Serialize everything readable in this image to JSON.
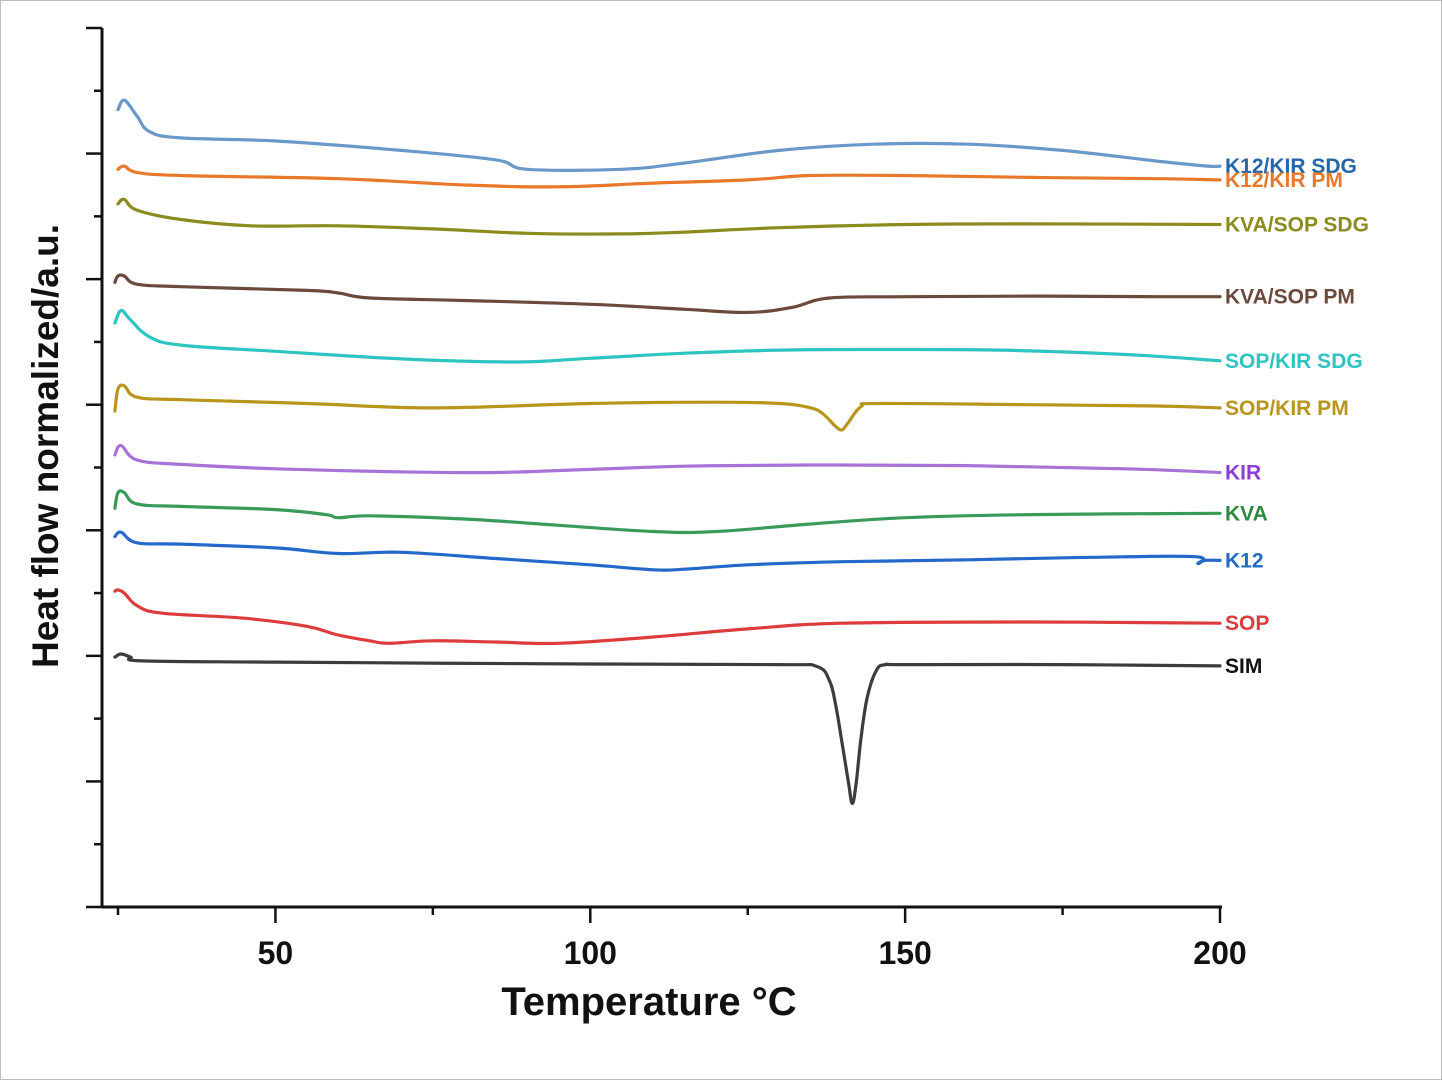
{
  "chart_data": {
    "type": "line",
    "xlabel": "Temperature °C",
    "ylabel": "Heat flow normalized/a.u.",
    "xlim": [
      22,
      203
    ],
    "xticks": [
      50,
      100,
      150,
      200
    ],
    "ylim": [
      0,
      14
    ],
    "yticks_labeled": false,
    "grid": false,
    "legend": "inline labels at right end of each curve",
    "series": [
      {
        "name": "K12/KIR SDG",
        "color": "#6a99c9",
        "label_color": "#2566a8",
        "points": [
          [
            25,
            12.7
          ],
          [
            26,
            12.85
          ],
          [
            28,
            12.6
          ],
          [
            30,
            12.35
          ],
          [
            35,
            12.25
          ],
          [
            50,
            12.2
          ],
          [
            70,
            12.05
          ],
          [
            85,
            11.9
          ],
          [
            90,
            11.75
          ],
          [
            105,
            11.75
          ],
          [
            115,
            11.85
          ],
          [
            130,
            12.05
          ],
          [
            145,
            12.15
          ],
          [
            160,
            12.15
          ],
          [
            175,
            12.05
          ],
          [
            190,
            11.88
          ],
          [
            198,
            11.8
          ],
          [
            200,
            11.8
          ]
        ]
      },
      {
        "name": "K12/KIR PM",
        "color": "#e8792a",
        "label_color": "#e8792a",
        "points": [
          [
            25,
            11.75
          ],
          [
            26,
            11.8
          ],
          [
            28,
            11.7
          ],
          [
            35,
            11.65
          ],
          [
            60,
            11.6
          ],
          [
            80,
            11.5
          ],
          [
            95,
            11.47
          ],
          [
            110,
            11.53
          ],
          [
            125,
            11.58
          ],
          [
            135,
            11.65
          ],
          [
            150,
            11.65
          ],
          [
            170,
            11.62
          ],
          [
            190,
            11.6
          ],
          [
            200,
            11.58
          ]
        ]
      },
      {
        "name": "KVA/SOP SDG",
        "color": "#8b8b1e",
        "label_color": "#8b8b1e",
        "points": [
          [
            25,
            11.2
          ],
          [
            26,
            11.27
          ],
          [
            28,
            11.1
          ],
          [
            35,
            10.95
          ],
          [
            46,
            10.85
          ],
          [
            60,
            10.85
          ],
          [
            75,
            10.8
          ],
          [
            90,
            10.73
          ],
          [
            105,
            10.72
          ],
          [
            115,
            10.75
          ],
          [
            130,
            10.82
          ],
          [
            150,
            10.87
          ],
          [
            170,
            10.88
          ],
          [
            200,
            10.87
          ]
        ]
      },
      {
        "name": "KVA/SOP PM",
        "color": "#6b4a3d",
        "label_color": "#6b4a3d",
        "points": [
          [
            24.5,
            9.95
          ],
          [
            25,
            10.05
          ],
          [
            26,
            10.05
          ],
          [
            28,
            9.92
          ],
          [
            35,
            9.88
          ],
          [
            55,
            9.82
          ],
          [
            60,
            9.78
          ],
          [
            65,
            9.7
          ],
          [
            80,
            9.66
          ],
          [
            100,
            9.6
          ],
          [
            115,
            9.52
          ],
          [
            125,
            9.47
          ],
          [
            132,
            9.55
          ],
          [
            138,
            9.7
          ],
          [
            150,
            9.72
          ],
          [
            170,
            9.73
          ],
          [
            190,
            9.72
          ],
          [
            200,
            9.72
          ]
        ]
      },
      {
        "name": "SOP/KIR SDG",
        "color": "#2ec4c1",
        "label_color": "#2ec4c1",
        "points": [
          [
            24.5,
            9.3
          ],
          [
            25.5,
            9.5
          ],
          [
            27,
            9.35
          ],
          [
            30,
            9.08
          ],
          [
            35,
            8.95
          ],
          [
            50,
            8.85
          ],
          [
            70,
            8.73
          ],
          [
            88,
            8.68
          ],
          [
            100,
            8.74
          ],
          [
            115,
            8.82
          ],
          [
            130,
            8.87
          ],
          [
            145,
            8.88
          ],
          [
            165,
            8.87
          ],
          [
            185,
            8.8
          ],
          [
            200,
            8.7
          ]
        ]
      },
      {
        "name": "SOP/KIR PM",
        "color": "#b8961c",
        "label_color": "#b8961c",
        "points": [
          [
            24.5,
            7.9
          ],
          [
            25,
            8.25
          ],
          [
            26,
            8.3
          ],
          [
            28,
            8.12
          ],
          [
            35,
            8.08
          ],
          [
            55,
            8.02
          ],
          [
            75,
            7.95
          ],
          [
            100,
            8.02
          ],
          [
            120,
            8.04
          ],
          [
            130,
            8.02
          ],
          [
            135,
            7.95
          ],
          [
            137,
            7.85
          ],
          [
            139,
            7.65
          ],
          [
            140,
            7.6
          ],
          [
            141,
            7.72
          ],
          [
            143,
            7.97
          ],
          [
            146,
            8.02
          ],
          [
            170,
            8.0
          ],
          [
            190,
            7.98
          ],
          [
            200,
            7.95
          ]
        ]
      },
      {
        "name": "KIR",
        "color": "#a873d6",
        "label_color": "#8a3cd6",
        "points": [
          [
            24.5,
            7.2
          ],
          [
            25.5,
            7.35
          ],
          [
            28,
            7.12
          ],
          [
            35,
            7.05
          ],
          [
            50,
            6.98
          ],
          [
            70,
            6.93
          ],
          [
            85,
            6.92
          ],
          [
            100,
            6.97
          ],
          [
            115,
            7.02
          ],
          [
            135,
            7.04
          ],
          [
            160,
            7.03
          ],
          [
            185,
            6.98
          ],
          [
            200,
            6.92
          ]
        ]
      },
      {
        "name": "KVA",
        "color": "#3a9a5a",
        "label_color": "#2e8a3e",
        "points": [
          [
            24.5,
            6.35
          ],
          [
            25,
            6.6
          ],
          [
            26,
            6.6
          ],
          [
            28,
            6.42
          ],
          [
            35,
            6.38
          ],
          [
            50,
            6.33
          ],
          [
            58,
            6.25
          ],
          [
            60,
            6.2
          ],
          [
            65,
            6.23
          ],
          [
            80,
            6.18
          ],
          [
            95,
            6.08
          ],
          [
            110,
            5.98
          ],
          [
            120,
            5.98
          ],
          [
            135,
            6.1
          ],
          [
            150,
            6.2
          ],
          [
            170,
            6.25
          ],
          [
            200,
            6.27
          ]
        ]
      },
      {
        "name": "K12",
        "color": "#2468c9",
        "label_color": "#2468c9",
        "points": [
          [
            24.5,
            5.9
          ],
          [
            25.5,
            5.97
          ],
          [
            28,
            5.8
          ],
          [
            35,
            5.78
          ],
          [
            50,
            5.72
          ],
          [
            60,
            5.63
          ],
          [
            70,
            5.65
          ],
          [
            85,
            5.55
          ],
          [
            100,
            5.45
          ],
          [
            110,
            5.37
          ],
          [
            115,
            5.38
          ],
          [
            125,
            5.45
          ],
          [
            140,
            5.5
          ],
          [
            160,
            5.53
          ],
          [
            180,
            5.57
          ],
          [
            196,
            5.58
          ],
          [
            196.5,
            5.47
          ],
          [
            197.5,
            5.52
          ],
          [
            200,
            5.52
          ]
        ]
      },
      {
        "name": "SOP",
        "color": "#dc3c3c",
        "label_color": "#dc3c3c",
        "points": [
          [
            24.5,
            5.03
          ],
          [
            25,
            5.05
          ],
          [
            26,
            5.0
          ],
          [
            28,
            4.8
          ],
          [
            32,
            4.68
          ],
          [
            45,
            4.6
          ],
          [
            55,
            4.47
          ],
          [
            60,
            4.33
          ],
          [
            65,
            4.24
          ],
          [
            68,
            4.2
          ],
          [
            75,
            4.24
          ],
          [
            85,
            4.22
          ],
          [
            95,
            4.2
          ],
          [
            110,
            4.3
          ],
          [
            125,
            4.43
          ],
          [
            140,
            4.52
          ],
          [
            170,
            4.54
          ],
          [
            200,
            4.52
          ]
        ]
      },
      {
        "name": "SIM",
        "color": "#3c3c3c",
        "label_color": "#111111",
        "points": [
          [
            24.5,
            3.98
          ],
          [
            25.5,
            4.03
          ],
          [
            27,
            3.98
          ],
          [
            29,
            3.92
          ],
          [
            50,
            3.9
          ],
          [
            100,
            3.87
          ],
          [
            130,
            3.86
          ],
          [
            136,
            3.83
          ],
          [
            138,
            3.6
          ],
          [
            139,
            3.2
          ],
          [
            140,
            2.6
          ],
          [
            141,
            1.98
          ],
          [
            141.6,
            1.65
          ],
          [
            142.2,
            1.95
          ],
          [
            143,
            2.7
          ],
          [
            144,
            3.35
          ],
          [
            145.5,
            3.78
          ],
          [
            147,
            3.86
          ],
          [
            150,
            3.86
          ],
          [
            175,
            3.86
          ],
          [
            200,
            3.84
          ]
        ]
      }
    ]
  }
}
